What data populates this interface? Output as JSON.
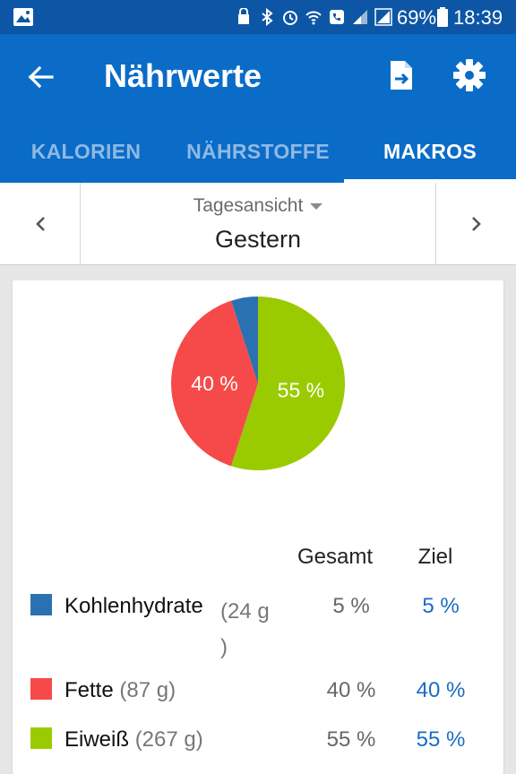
{
  "status_bar": {
    "battery_percent": "69%",
    "time": "18:39"
  },
  "app_bar": {
    "title": "Nährwerte"
  },
  "tabs": [
    {
      "label": "KALORIEN",
      "active": false
    },
    {
      "label": "NÄHRSTOFFE",
      "active": false
    },
    {
      "label": "MAKROS",
      "active": true
    }
  ],
  "date_selector": {
    "mode": "Tagesansicht",
    "day": "Gestern"
  },
  "chart_data": {
    "type": "pie",
    "slices": [
      {
        "name": "Kohlenhydrate",
        "value": 5,
        "color": "#2b71b1"
      },
      {
        "name": "Fette",
        "value": 40,
        "color": "#f64a4a"
      },
      {
        "name": "Eiweiß",
        "value": 55,
        "color": "#9acb00"
      }
    ],
    "data_labels": [
      "40 %",
      "55 %"
    ]
  },
  "table": {
    "headers": {
      "total": "Gesamt",
      "goal": "Ziel"
    },
    "rows": [
      {
        "name": "Kohlenhydrate",
        "grams_line1": "(24 g",
        "grams_line2": ")",
        "total": "5 %",
        "goal": "5 %",
        "color": "#2b71b1"
      },
      {
        "name": "Fette",
        "grams": "(87 g)",
        "total": "40 %",
        "goal": "40 %",
        "color": "#f64a4a"
      },
      {
        "name": "Eiweiß",
        "grams": "(267 g)",
        "total": "55 %",
        "goal": "55 %",
        "color": "#9acb00"
      }
    ]
  }
}
